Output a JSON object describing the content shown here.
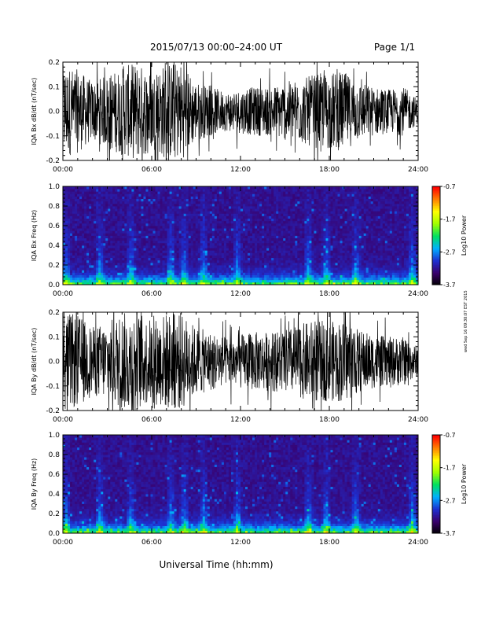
{
  "header": {
    "title": "2015/07/13  00:00–24:00 UT",
    "page": "Page 1/1"
  },
  "footer": {
    "xlabel": "Universal Time (hh:mm)"
  },
  "stamp": "wed Sep 16 09:30:07 EST 2015",
  "colors": {
    "trace": "#000000",
    "colorbar": [
      "#000000",
      "#3a006b",
      "#1e2fd0",
      "#00b0ff",
      "#00e060",
      "#a0ff00",
      "#ffff00",
      "#ff8000",
      "#ff0000"
    ]
  },
  "chart_data": [
    {
      "type": "line",
      "title": "",
      "ylabel": "IQA Bx dB/dt (nT/sec)",
      "xlabel": "",
      "xlim": [
        "00:00",
        "24:00"
      ],
      "xticks": [
        "00:00",
        "06:00",
        "12:00",
        "18:00",
        "24:00"
      ],
      "ylim": [
        -0.2,
        0.2
      ],
      "yticks": [
        "-0.2",
        "-0.1",
        "0.0",
        "0.1",
        "0.2"
      ],
      "grid": false,
      "series": [
        {
          "hours": [
            0,
            1,
            2,
            3,
            4,
            5,
            6,
            7,
            8,
            9,
            10,
            11,
            12,
            13,
            14,
            15,
            16,
            17,
            18,
            19,
            20,
            21,
            22,
            23,
            24
          ],
          "amplitude": [
            0.19,
            0.17,
            0.12,
            0.15,
            0.18,
            0.2,
            0.16,
            0.2,
            0.2,
            0.12,
            0.1,
            0.08,
            0.09,
            0.1,
            0.1,
            0.12,
            0.13,
            0.15,
            0.16,
            0.16,
            0.12,
            0.1,
            0.09,
            0.1,
            0.05
          ]
        }
      ]
    },
    {
      "type": "heatmap",
      "title": "",
      "ylabel": "IQA Bx Freq (Hz)",
      "xlabel": "",
      "xlim": [
        "00:00",
        "24:00"
      ],
      "xticks": [
        "00:00",
        "06:00",
        "12:00",
        "18:00",
        "24:00"
      ],
      "ylim": [
        0.0,
        1.0
      ],
      "yticks": [
        "0.0",
        "0.2",
        "0.4",
        "0.6",
        "0.8",
        "1.0"
      ],
      "colorbar": {
        "label": "Log10 Power",
        "range": [
          -3.7,
          -0.7
        ],
        "ticks": [
          "-0.7",
          "-1.7",
          "-2.7",
          "-3.7"
        ]
      },
      "hot_hours": [
        0.2,
        2.5,
        4.6,
        7.3,
        8.2,
        9.5,
        11.8,
        16.6,
        17.8,
        19.8,
        23.6
      ]
    },
    {
      "type": "line",
      "title": "",
      "ylabel": "IQA By dB/dt (nT/sec)",
      "xlabel": "",
      "xlim": [
        "00:00",
        "24:00"
      ],
      "xticks": [
        "00:00",
        "06:00",
        "12:00",
        "18:00",
        "24:00"
      ],
      "ylim": [
        -0.2,
        0.2
      ],
      "yticks": [
        "-0.2",
        "-0.1",
        "0.0",
        "0.1",
        "0.2"
      ],
      "grid": false,
      "series": [
        {
          "hours": [
            0,
            1,
            2,
            3,
            4,
            5,
            6,
            7,
            8,
            9,
            10,
            11,
            12,
            13,
            14,
            15,
            16,
            17,
            18,
            19,
            20,
            21,
            22,
            23,
            24
          ],
          "amplitude": [
            0.2,
            0.19,
            0.14,
            0.16,
            0.2,
            0.2,
            0.17,
            0.2,
            0.2,
            0.14,
            0.12,
            0.1,
            0.11,
            0.12,
            0.12,
            0.13,
            0.15,
            0.17,
            0.16,
            0.17,
            0.13,
            0.11,
            0.1,
            0.1,
            0.06
          ]
        }
      ]
    },
    {
      "type": "heatmap",
      "title": "",
      "ylabel": "IQA By Freq (Hz)",
      "xlabel": "",
      "xlim": [
        "00:00",
        "24:00"
      ],
      "xticks": [
        "00:00",
        "06:00",
        "12:00",
        "18:00",
        "24:00"
      ],
      "ylim": [
        0.0,
        1.0
      ],
      "yticks": [
        "0.0",
        "0.2",
        "0.4",
        "0.6",
        "0.8",
        "1.0"
      ],
      "colorbar": {
        "label": "Log10 Power",
        "range": [
          -3.7,
          -0.7
        ],
        "ticks": [
          "-0.7",
          "-1.7",
          "-2.7",
          "-3.7"
        ]
      },
      "hot_hours": [
        0.2,
        2.5,
        4.6,
        7.3,
        8.2,
        9.5,
        11.8,
        16.6,
        17.8,
        19.8,
        23.6
      ]
    }
  ]
}
